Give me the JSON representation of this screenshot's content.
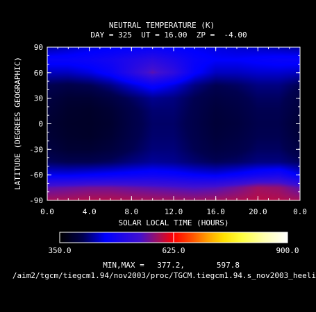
{
  "chart_data": {
    "type": "heatmap",
    "title": "NEUTRAL TEMPERATURE (K)",
    "subtitle": "DAY = 325  UT = 16.00  ZP =  -4.00",
    "xlabel": "SOLAR LOCAL TIME (HOURS)",
    "ylabel": "LATITUDE (DEGREES GEOGRAPHIC)",
    "xlim": [
      0,
      24
    ],
    "ylim": [
      -90,
      90
    ],
    "x_ticks": [
      "0.0",
      "4.0",
      "8.0",
      "12.0",
      "16.0",
      "20.0",
      "0.0"
    ],
    "y_ticks": [
      "90",
      "60",
      "30",
      "0",
      "-30",
      "-60",
      "-90"
    ],
    "x": [
      0,
      2,
      4,
      6,
      8,
      10,
      12,
      14,
      16,
      18,
      20,
      22,
      24
    ],
    "y": [
      90,
      75,
      60,
      45,
      30,
      15,
      0,
      -15,
      -30,
      -45,
      -60,
      -75,
      -90
    ],
    "z": [
      [
        430,
        440,
        450,
        455,
        460,
        465,
        460,
        455,
        450,
        445,
        440,
        435,
        430
      ],
      [
        470,
        470,
        475,
        485,
        500,
        515,
        495,
        470,
        460,
        460,
        465,
        470,
        470
      ],
      [
        440,
        440,
        450,
        470,
        510,
        555,
        520,
        465,
        440,
        440,
        445,
        445,
        440
      ],
      [
        405,
        400,
        405,
        420,
        445,
        470,
        450,
        420,
        405,
        410,
        420,
        420,
        405
      ],
      [
        395,
        385,
        385,
        395,
        410,
        425,
        420,
        405,
        395,
        400,
        410,
        410,
        395
      ],
      [
        390,
        380,
        378,
        385,
        400,
        415,
        415,
        402,
        390,
        395,
        405,
        405,
        390
      ],
      [
        385,
        378,
        377,
        382,
        398,
        412,
        412,
        400,
        388,
        392,
        402,
        402,
        385
      ],
      [
        388,
        380,
        378,
        385,
        400,
        414,
        414,
        402,
        390,
        395,
        405,
        405,
        388
      ],
      [
        395,
        385,
        385,
        392,
        405,
        418,
        418,
        405,
        395,
        400,
        410,
        410,
        395
      ],
      [
        410,
        405,
        405,
        410,
        420,
        428,
        425,
        415,
        408,
        412,
        420,
        420,
        410
      ],
      [
        455,
        455,
        460,
        465,
        470,
        475,
        470,
        460,
        455,
        465,
        480,
        490,
        455
      ],
      [
        555,
        560,
        565,
        565,
        560,
        555,
        550,
        545,
        550,
        565,
        585,
        580,
        555
      ],
      [
        590,
        592,
        595,
        595,
        592,
        590,
        588,
        585,
        588,
        592,
        597,
        595,
        590
      ]
    ],
    "colorbar": {
      "min": 350.0,
      "max": 900.0,
      "tick_labels": [
        "350.0",
        "625.0",
        "900.0"
      ],
      "stops": [
        [
          0.0,
          "#000000"
        ],
        [
          0.1,
          "#000050"
        ],
        [
          0.2,
          "#0000ff"
        ],
        [
          0.35,
          "#4010d0"
        ],
        [
          0.43,
          "#a01060"
        ],
        [
          0.5,
          "#ff0000"
        ],
        [
          0.58,
          "#ff5000"
        ],
        [
          0.65,
          "#ffa000"
        ],
        [
          0.72,
          "#ffe000"
        ],
        [
          0.8,
          "#ffff40"
        ],
        [
          0.9,
          "#ffffb0"
        ],
        [
          1.0,
          "#ffffff"
        ]
      ]
    },
    "minmax_label": "MIN,MAX =",
    "min_value": "377.2,",
    "max_value": "597.8",
    "source_path": "/aim2/tgcm/tiegcm1.94/nov2003/proc/TGCM.tiegcm1.94.s_nov2003_heeli"
  }
}
